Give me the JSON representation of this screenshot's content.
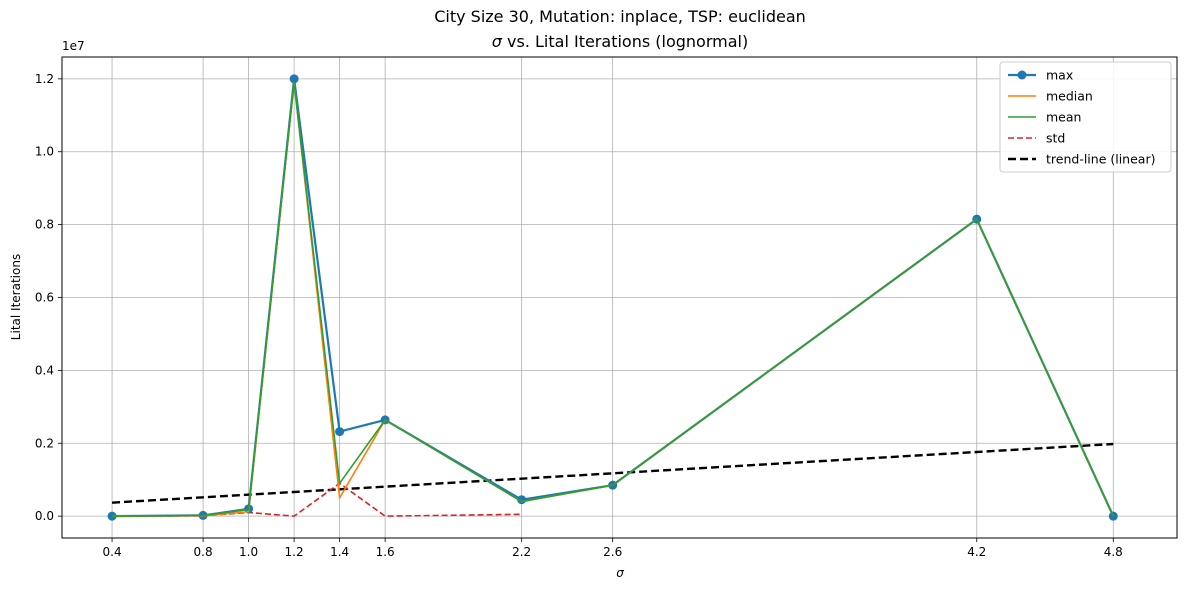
{
  "chart_data": {
    "type": "line",
    "title_line1": "City Size 30, Mutation: inplace, TSP: euclidean",
    "title_line2_sigma": "σ",
    "title_line2_rest": " vs. Lital Iterations (lognormal)",
    "xlabel": "σ",
    "ylabel": "Lital Iterations",
    "y_offset_label": "1e7",
    "x": [
      0.4,
      0.8,
      1.0,
      1.2,
      1.4,
      1.6,
      2.2,
      2.6,
      4.2,
      4.8
    ],
    "x_tick_labels": [
      "0.4",
      "0.8",
      "1.0",
      "1.2",
      "1.4",
      "1.6",
      "2.2",
      "2.6",
      "4.2",
      "4.8"
    ],
    "y_ticks": [
      0.0,
      0.2,
      0.4,
      0.6,
      0.8,
      1.0,
      1.2
    ],
    "y_tick_labels": [
      "0.0",
      "0.2",
      "0.4",
      "0.6",
      "0.8",
      "1.0",
      "1.2"
    ],
    "xlim": [
      0.18,
      5.08
    ],
    "ylim": [
      -0.06,
      1.26
    ],
    "grid": true,
    "legend_position": "top-right",
    "series": [
      {
        "name": "max",
        "color": "#1f77b4",
        "style": "solid-marker",
        "x": [
          0.4,
          0.8,
          1.0,
          1.2,
          1.4,
          1.6,
          2.2,
          2.6,
          4.2,
          4.8
        ],
        "values": [
          0.0,
          0.002,
          0.02,
          1.2,
          0.232,
          0.264,
          0.045,
          0.085,
          0.815,
          0.0
        ]
      },
      {
        "name": "median",
        "color": "#ff7f0e",
        "style": "solid",
        "x": [
          0.4,
          0.8,
          1.0,
          1.2,
          1.4,
          1.6,
          2.2,
          2.6,
          4.2,
          4.8
        ],
        "values": [
          0.0,
          0.001,
          0.012,
          1.19,
          0.05,
          0.264,
          0.04,
          0.085,
          0.815,
          0.0
        ]
      },
      {
        "name": "mean",
        "color": "#2ca02c",
        "style": "solid",
        "x": [
          0.4,
          0.8,
          1.0,
          1.2,
          1.4,
          1.6,
          2.2,
          2.6,
          4.2,
          4.8
        ],
        "values": [
          0.0,
          0.002,
          0.018,
          1.19,
          0.09,
          0.264,
          0.04,
          0.085,
          0.815,
          0.0
        ]
      },
      {
        "name": "std",
        "color": "#d62728",
        "style": "dashed",
        "x": [
          0.4,
          0.8,
          1.0,
          1.2,
          1.4,
          1.6,
          2.2
        ],
        "values": [
          0.0,
          0.001,
          0.01,
          0.0,
          0.09,
          0.0,
          0.005
        ]
      },
      {
        "name": "trend-line (linear)",
        "color": "#000000",
        "style": "dashed-thick",
        "x": [
          0.4,
          4.8
        ],
        "values": [
          0.037,
          0.198
        ]
      }
    ]
  }
}
